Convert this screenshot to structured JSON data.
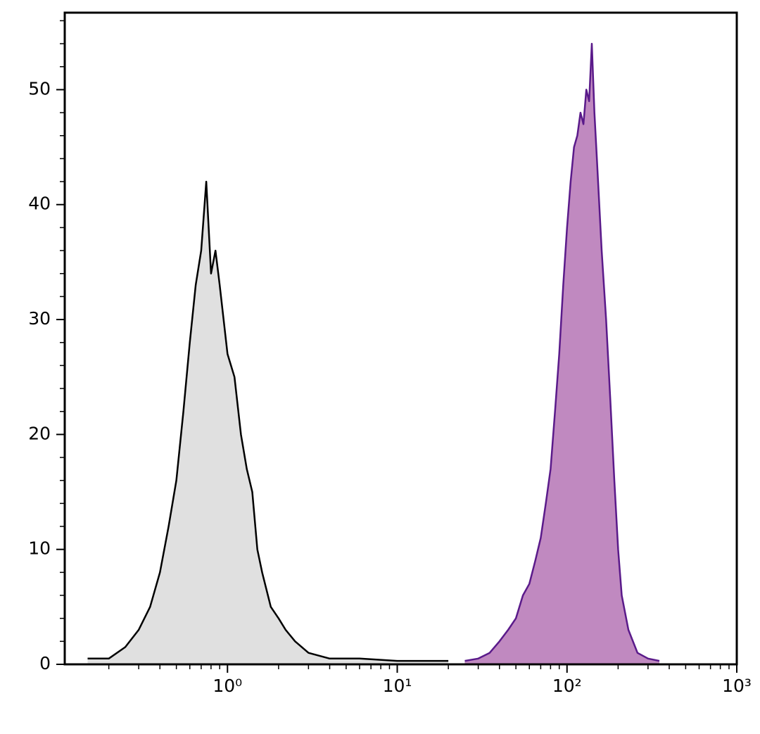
{
  "chart_data": {
    "type": "area",
    "xscale": "log",
    "xlim": [
      0.11,
      1000
    ],
    "ylim": [
      0,
      56.7
    ],
    "xticks": [
      {
        "value": 1,
        "label": "10⁰"
      },
      {
        "value": 10,
        "label": "10¹"
      },
      {
        "value": 100,
        "label": "10²"
      },
      {
        "value": 1000,
        "label": "10³"
      }
    ],
    "xticks_minor": [
      0.2,
      0.3,
      0.4,
      0.5,
      0.6,
      0.7,
      0.8,
      0.9,
      2,
      3,
      4,
      5,
      6,
      7,
      8,
      9,
      20,
      30,
      40,
      50,
      60,
      70,
      80,
      90,
      200,
      300,
      400,
      500,
      600,
      700,
      800,
      900
    ],
    "yticks": [
      0,
      10,
      20,
      30,
      40,
      50
    ],
    "yticks_minor": [
      2,
      4,
      6,
      8,
      12,
      14,
      16,
      18,
      22,
      24,
      26,
      28,
      32,
      34,
      36,
      38,
      42,
      44,
      46,
      48,
      52,
      54,
      56
    ],
    "series": [
      {
        "color": "#000000",
        "fill": "#e0e0e0",
        "x": [
          0.15,
          0.2,
          0.25,
          0.3,
          0.35,
          0.4,
          0.45,
          0.5,
          0.55,
          0.6,
          0.65,
          0.7,
          0.75,
          0.8,
          0.85,
          0.9,
          1.0,
          1.1,
          1.2,
          1.3,
          1.4,
          1.5,
          1.6,
          1.8,
          2.0,
          2.2,
          2.5,
          3,
          4,
          6,
          10,
          20
        ],
        "values": [
          0.5,
          0.5,
          1.5,
          3,
          5,
          8,
          12,
          16,
          22,
          28,
          33,
          36,
          42,
          34,
          36,
          33,
          27,
          25,
          20,
          17,
          15,
          10,
          8,
          5,
          4,
          3,
          2,
          1,
          0.5,
          0.5,
          0.3,
          0.3
        ]
      },
      {
        "color": "#5a1a8a",
        "fill": "#c089c0",
        "x": [
          25,
          30,
          35,
          40,
          45,
          50,
          55,
          60,
          65,
          70,
          75,
          80,
          85,
          90,
          95,
          100,
          105,
          110,
          115,
          120,
          125,
          130,
          135,
          140,
          145,
          150,
          160,
          170,
          180,
          190,
          200,
          210,
          230,
          260,
          300,
          350
        ],
        "values": [
          0.3,
          0.5,
          1,
          2,
          3,
          4,
          6,
          7,
          9,
          11,
          14,
          17,
          22,
          27,
          33,
          38,
          42,
          45,
          46,
          48,
          47,
          50,
          49,
          54,
          48,
          44,
          36,
          30,
          23,
          16,
          10,
          6,
          3,
          1,
          0.5,
          0.3
        ]
      }
    ]
  }
}
